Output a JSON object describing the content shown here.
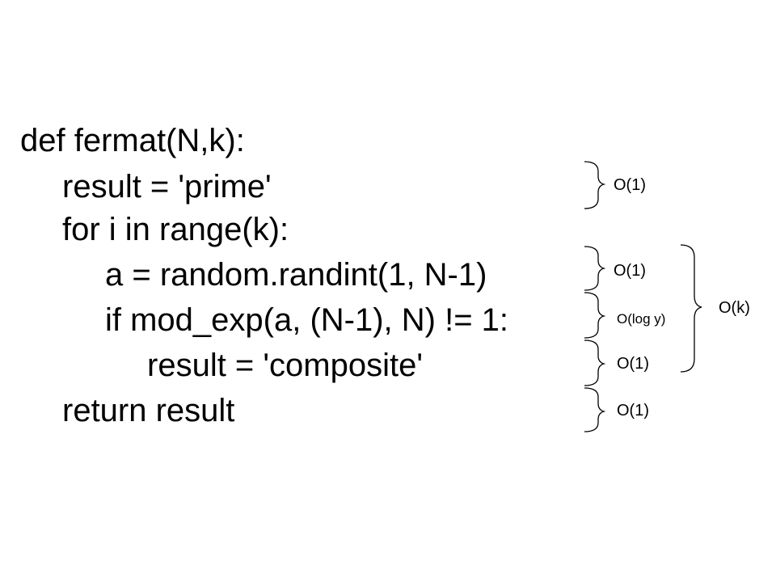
{
  "code": {
    "line1": "def fermat(N,k):",
    "line2": "result = 'prime'",
    "line3": "for i in range(k):",
    "line4": "a = random.randint(1, N-1)",
    "line5": "if mod_exp(a, (N-1), N) != 1:",
    "line6": "result = 'composite'",
    "line7": "return result"
  },
  "annotations": {
    "result_init": "O(1)",
    "randint": "O(1)",
    "mod_exp": "O(log y)",
    "assign_composite": "O(1)",
    "return": "O(1)",
    "loop": "O(k)"
  }
}
